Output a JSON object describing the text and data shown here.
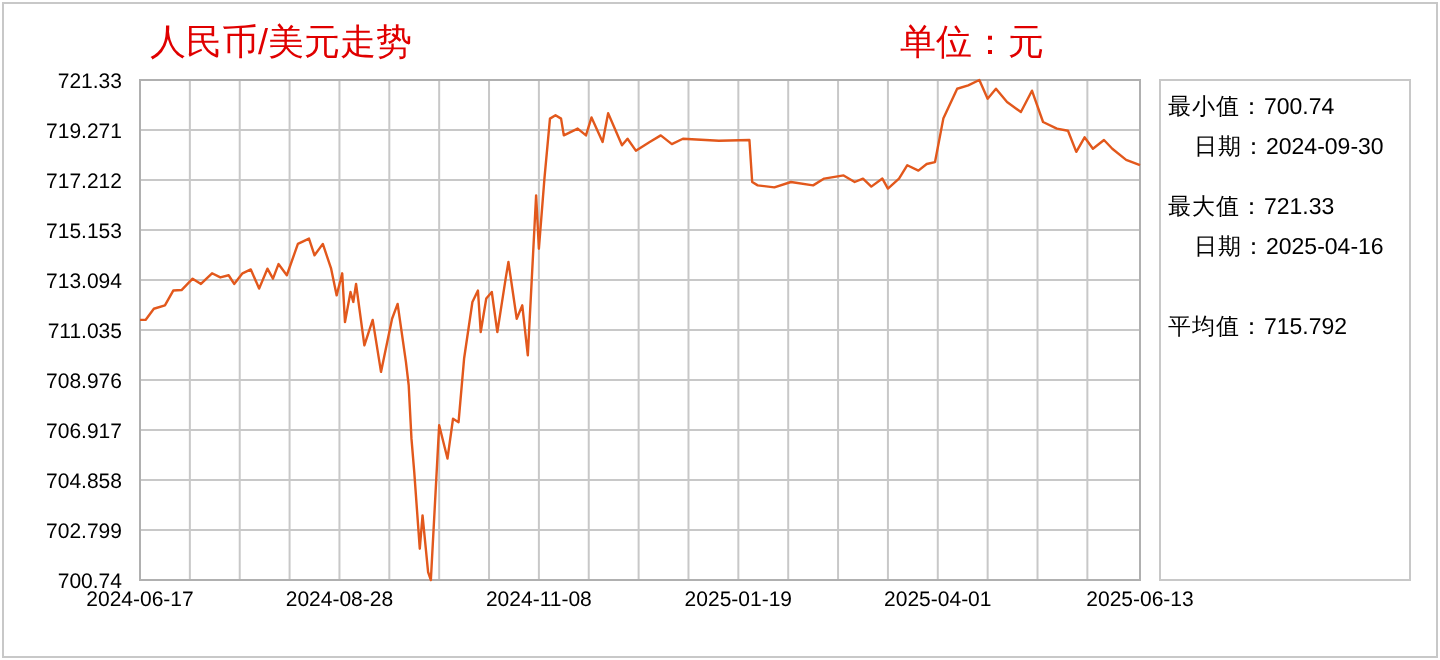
{
  "chart_data": {
    "type": "line",
    "title": "人民币/美元走势",
    "subtitle": "单位：元",
    "annotations": [
      "最小值：700.74",
      "日期：2024-09-30",
      "最大值：721.33",
      "日期：2025-04-16",
      "平均值：715.792"
    ],
    "xlim": [
      "2024-06-17",
      "2025-06-13"
    ],
    "xticks": [
      {
        "value": "2024-06-17",
        "label": "2024-06-17"
      },
      {
        "value": "2024-07-05",
        "label": null
      },
      {
        "value": "2024-07-23",
        "label": null
      },
      {
        "value": "2024-08-10",
        "label": null
      },
      {
        "value": "2024-08-28",
        "label": "2024-08-28"
      },
      {
        "value": "2024-09-15",
        "label": null
      },
      {
        "value": "2024-10-03",
        "label": null
      },
      {
        "value": "2024-10-21",
        "label": null
      },
      {
        "value": "2024-11-08",
        "label": "2024-11-08"
      },
      {
        "value": "2024-11-26",
        "label": null
      },
      {
        "value": "2024-12-14",
        "label": null
      },
      {
        "value": "2025-01-01",
        "label": null
      },
      {
        "value": "2025-01-19",
        "label": "2025-01-19"
      },
      {
        "value": "2025-02-06",
        "label": null
      },
      {
        "value": "2025-02-24",
        "label": null
      },
      {
        "value": "2025-03-14",
        "label": null
      },
      {
        "value": "2025-04-01",
        "label": "2025-04-01"
      },
      {
        "value": "2025-04-19",
        "label": null
      },
      {
        "value": "2025-05-07",
        "label": null
      },
      {
        "value": "2025-05-25",
        "label": null
      },
      {
        "value": "2025-06-13",
        "label": "2025-06-13"
      }
    ],
    "ylim": [
      700.74,
      721.33
    ],
    "yticks": [
      700.74,
      702.799,
      704.858,
      706.917,
      708.976,
      711.035,
      713.094,
      715.153,
      717.212,
      719.271,
      721.33
    ],
    "grid": true,
    "series": [
      {
        "color": "#e2581c",
        "x": [
          "2024-06-17",
          "2024-06-19",
          "2024-06-22",
          "2024-06-26",
          "2024-06-29",
          "2024-07-02",
          "2024-07-06",
          "2024-07-09",
          "2024-07-13",
          "2024-07-16",
          "2024-07-19",
          "2024-07-21",
          "2024-07-24",
          "2024-07-27",
          "2024-07-30",
          "2024-08-02",
          "2024-08-04",
          "2024-08-06",
          "2024-08-09",
          "2024-08-13",
          "2024-08-17",
          "2024-08-19",
          "2024-08-22",
          "2024-08-25",
          "2024-08-27",
          "2024-08-29",
          "2024-08-30",
          "2024-09-01",
          "2024-09-02",
          "2024-09-03",
          "2024-09-06",
          "2024-09-09",
          "2024-09-12",
          "2024-09-16",
          "2024-09-18",
          "2024-09-21",
          "2024-09-22",
          "2024-09-23",
          "2024-09-24",
          "2024-09-26",
          "2024-09-27",
          "2024-09-29",
          "2024-09-30",
          "2024-10-03",
          "2024-10-06",
          "2024-10-08",
          "2024-10-10",
          "2024-10-12",
          "2024-10-15",
          "2024-10-17",
          "2024-10-18",
          "2024-10-20",
          "2024-10-22",
          "2024-10-24",
          "2024-10-27",
          "2024-10-28",
          "2024-10-31",
          "2024-11-02",
          "2024-11-04",
          "2024-11-07",
          "2024-11-08",
          "2024-11-10",
          "2024-11-12",
          "2024-11-14",
          "2024-11-16",
          "2024-11-17",
          "2024-11-22",
          "2024-11-25",
          "2024-11-27",
          "2024-12-01",
          "2024-12-03",
          "2024-12-08",
          "2024-12-10",
          "2024-12-13",
          "2024-12-18",
          "2024-12-22",
          "2024-12-26",
          "2024-12-30",
          "2025-01-12",
          "2025-01-23",
          "2025-01-24",
          "2025-01-26",
          "2025-02-01",
          "2025-02-07",
          "2025-02-15",
          "2025-02-19",
          "2025-02-26",
          "2025-03-02",
          "2025-03-05",
          "2025-03-08",
          "2025-03-12",
          "2025-03-14",
          "2025-03-18",
          "2025-03-21",
          "2025-03-25",
          "2025-03-28",
          "2025-03-31",
          "2025-04-03",
          "2025-04-08",
          "2025-04-12",
          "2025-04-16",
          "2025-04-19",
          "2025-04-22",
          "2025-04-26",
          "2025-05-01",
          "2025-05-05",
          "2025-05-09",
          "2025-05-14",
          "2025-05-18",
          "2025-05-21",
          "2025-05-24",
          "2025-05-27",
          "2025-05-31",
          "2025-06-03",
          "2025-06-08",
          "2025-06-13"
        ],
        "values": [
          711.45,
          711.45,
          711.91,
          712.05,
          712.66,
          712.68,
          713.15,
          712.93,
          713.37,
          713.2,
          713.29,
          712.93,
          713.37,
          713.53,
          712.74,
          713.56,
          713.15,
          713.75,
          713.29,
          714.58,
          714.8,
          714.11,
          714.58,
          713.56,
          712.46,
          713.37,
          711.36,
          712.6,
          712.19,
          712.93,
          710.4,
          711.45,
          709.31,
          711.5,
          712.11,
          709.72,
          708.76,
          706.56,
          705.19,
          702.03,
          703.4,
          701.07,
          700.74,
          707.11,
          705.74,
          707.38,
          707.24,
          709.86,
          712.19,
          712.66,
          710.95,
          712.33,
          712.6,
          710.95,
          713.15,
          713.84,
          711.5,
          712.05,
          709.99,
          716.58,
          714.38,
          717.27,
          719.74,
          719.88,
          719.74,
          719.05,
          719.33,
          719.05,
          719.79,
          718.78,
          719.96,
          718.64,
          718.91,
          718.42,
          718.78,
          719.05,
          718.69,
          718.91,
          718.83,
          718.86,
          717.13,
          716.99,
          716.91,
          717.13,
          716.99,
          717.27,
          717.4,
          717.13,
          717.27,
          716.94,
          717.27,
          716.86,
          717.27,
          717.82,
          717.6,
          717.87,
          717.95,
          719.74,
          720.97,
          721.11,
          721.33,
          720.56,
          720.97,
          720.42,
          720.01,
          720.89,
          719.6,
          719.33,
          719.24,
          718.37,
          718.97,
          718.5,
          718.86,
          718.5,
          718.04,
          717.82
        ]
      }
    ]
  }
}
